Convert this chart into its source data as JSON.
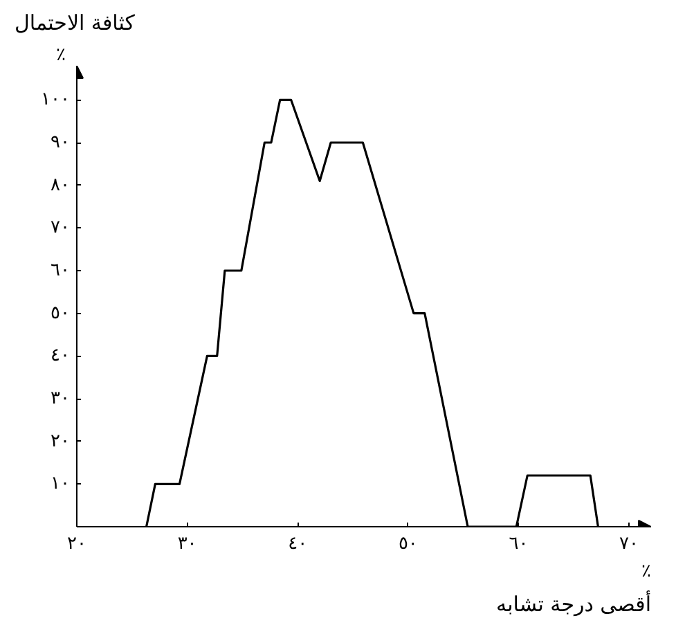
{
  "chart_data": {
    "type": "line",
    "xlabel": "أقصى درجة تشابه",
    "ylabel": "كثافة الاحتمال",
    "x": [
      26.3,
      27.1,
      29.3,
      31.8,
      32.7,
      33.4,
      34.9,
      37.0,
      37.6,
      38.4,
      39.4,
      42.0,
      43.0,
      45.9,
      50.5,
      51.5,
      55.4,
      59.8,
      60.8,
      66.5,
      67.2
    ],
    "series": [
      {
        "color": "#000000",
        "values": [
          0,
          10,
          10,
          40,
          40,
          60,
          60,
          90,
          90,
          100,
          100,
          81,
          90,
          90,
          50,
          50,
          0,
          0,
          12,
          12,
          0
        ]
      }
    ],
    "xlim": [
      20,
      72
    ],
    "ylim": [
      0,
      108
    ],
    "xticks": [
      {
        "value": 20,
        "label": "٢٠"
      },
      {
        "value": 30,
        "label": "٣٠"
      },
      {
        "value": 40,
        "label": "٤٠"
      },
      {
        "value": 50,
        "label": "٥٠"
      },
      {
        "value": 60,
        "label": "٦٠"
      },
      {
        "value": 70,
        "label": "٧٠"
      }
    ],
    "yticks": [
      {
        "value": 10,
        "label": "١٠"
      },
      {
        "value": 20,
        "label": "٢٠"
      },
      {
        "value": 30,
        "label": "٣٠"
      },
      {
        "value": 40,
        "label": "٤٠"
      },
      {
        "value": 50,
        "label": "٥٠"
      },
      {
        "value": 60,
        "label": "٦٠"
      },
      {
        "value": 70,
        "label": "٧٠"
      },
      {
        "value": 80,
        "label": "٨٠"
      },
      {
        "value": 90,
        "label": "٩٠"
      },
      {
        "value": 100,
        "label": "١٠٠"
      }
    ],
    "annotations": [
      "٪",
      "٪"
    ],
    "grid": false,
    "marker": "none",
    "line_style": "solid"
  }
}
